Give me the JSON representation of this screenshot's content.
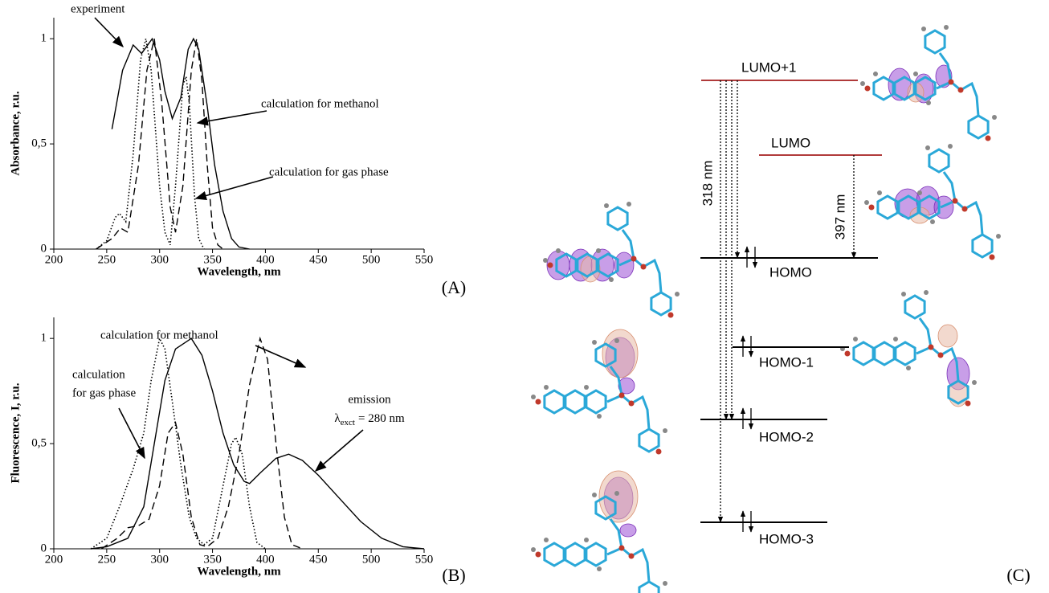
{
  "chart_data": [
    {
      "type": "line",
      "panel_label": "(A)",
      "xlabel": "Wavelength, nm",
      "ylabel": "Absorbance, r.u.",
      "xlim": [
        200,
        550
      ],
      "xticks": [
        200,
        250,
        300,
        350,
        400,
        450,
        500,
        550
      ],
      "ylim": [
        0,
        1.1
      ],
      "yticks": [
        0,
        {
          "value": 0.5,
          "label": "0,5"
        },
        1
      ],
      "series": [
        {
          "style": "solid",
          "color": "#000000",
          "x": [
            255,
            265,
            275,
            283,
            293,
            300,
            305,
            312,
            320,
            327,
            332,
            337,
            345,
            352,
            360,
            368,
            375,
            385
          ],
          "values": [
            0.57,
            0.85,
            0.97,
            0.93,
            1.0,
            0.9,
            0.75,
            0.62,
            0.72,
            0.95,
            1.0,
            0.95,
            0.68,
            0.4,
            0.18,
            0.05,
            0.01,
            0
          ]
        },
        {
          "style": "dashed",
          "color": "#000000",
          "x": [
            240,
            255,
            263,
            270,
            280,
            288,
            295,
            302,
            310,
            315,
            322,
            330,
            335,
            340,
            345,
            350,
            355,
            360
          ],
          "values": [
            0,
            0.05,
            0.1,
            0.08,
            0.4,
            0.85,
            1.0,
            0.7,
            0.2,
            0.08,
            0.3,
            0.85,
            1.0,
            0.8,
            0.4,
            0.1,
            0.02,
            0
          ]
        },
        {
          "style": "dotted",
          "color": "#000000",
          "x": [
            240,
            250,
            258,
            262,
            268,
            275,
            282,
            287,
            292,
            300,
            305,
            310,
            315,
            322,
            325,
            328,
            333,
            337,
            342
          ],
          "values": [
            0,
            0.04,
            0.15,
            0.17,
            0.13,
            0.45,
            0.9,
            1.0,
            0.85,
            0.3,
            0.08,
            0.02,
            0.3,
            0.78,
            0.82,
            0.7,
            0.25,
            0.05,
            0
          ]
        }
      ],
      "annotations": [
        {
          "text": "experiment"
        },
        {
          "text": "calculation for methanol"
        },
        {
          "text": "calculation for gas phase"
        }
      ]
    },
    {
      "type": "line",
      "panel_label": "(B)",
      "xlabel": "Wavelength, nm",
      "ylabel": "Fluorescence, I, r.u.",
      "xlim": [
        200,
        550
      ],
      "xticks": [
        200,
        250,
        300,
        350,
        400,
        450,
        500,
        550
      ],
      "ylim": [
        0,
        1.1
      ],
      "yticks": [
        0,
        {
          "value": 0.5,
          "label": "0,5"
        },
        1
      ],
      "series": [
        {
          "style": "solid",
          "color": "#000000",
          "x": [
            235,
            250,
            270,
            285,
            295,
            305,
            315,
            330,
            340,
            350,
            360,
            370,
            380,
            385,
            395,
            410,
            422,
            435,
            450,
            470,
            490,
            510,
            530,
            550
          ],
          "values": [
            0,
            0.01,
            0.05,
            0.2,
            0.5,
            0.8,
            0.95,
            1.0,
            0.92,
            0.75,
            0.55,
            0.4,
            0.32,
            0.31,
            0.36,
            0.43,
            0.45,
            0.42,
            0.35,
            0.24,
            0.13,
            0.05,
            0.01,
            0
          ]
        },
        {
          "style": "dashed",
          "color": "#000000",
          "x": [
            245,
            260,
            270,
            280,
            290,
            300,
            308,
            315,
            322,
            330,
            338,
            345,
            355,
            365,
            375,
            385,
            395,
            402,
            410,
            418,
            425,
            435
          ],
          "values": [
            0,
            0.05,
            0.1,
            0.11,
            0.14,
            0.3,
            0.55,
            0.6,
            0.45,
            0.15,
            0.02,
            0.01,
            0.05,
            0.2,
            0.45,
            0.78,
            1.0,
            0.9,
            0.5,
            0.15,
            0.02,
            0
          ]
        },
        {
          "style": "dotted",
          "color": "#000000",
          "x": [
            235,
            250,
            262,
            275,
            285,
            292,
            300,
            305,
            312,
            320,
            328,
            335,
            342,
            350,
            360,
            368,
            372,
            378,
            385,
            392,
            400
          ],
          "values": [
            0,
            0.05,
            0.2,
            0.38,
            0.55,
            0.8,
            1.0,
            0.95,
            0.7,
            0.4,
            0.15,
            0.05,
            0.02,
            0.05,
            0.3,
            0.5,
            0.53,
            0.45,
            0.2,
            0.03,
            0
          ]
        }
      ],
      "annotations": [
        {
          "text": "calculation for methanol"
        },
        {
          "text": "calculation"
        },
        {
          "text": "for gas phase"
        },
        {
          "text": "emission"
        }
      ],
      "excitation_label": {
        "symbol": "λ",
        "subscript": "exct",
        "text": "= 280 nm"
      }
    }
  ],
  "diagram": {
    "panel_label": "(C)",
    "levels": [
      {
        "label": "LUMO+1"
      },
      {
        "label": "LUMO"
      },
      {
        "label": "HOMO"
      },
      {
        "label": "HOMO-1"
      },
      {
        "label": "HOMO-2"
      },
      {
        "label": "HOMO-3"
      }
    ],
    "transitions": [
      {
        "label": "318 nm"
      },
      {
        "label": "397 nm"
      }
    ]
  }
}
